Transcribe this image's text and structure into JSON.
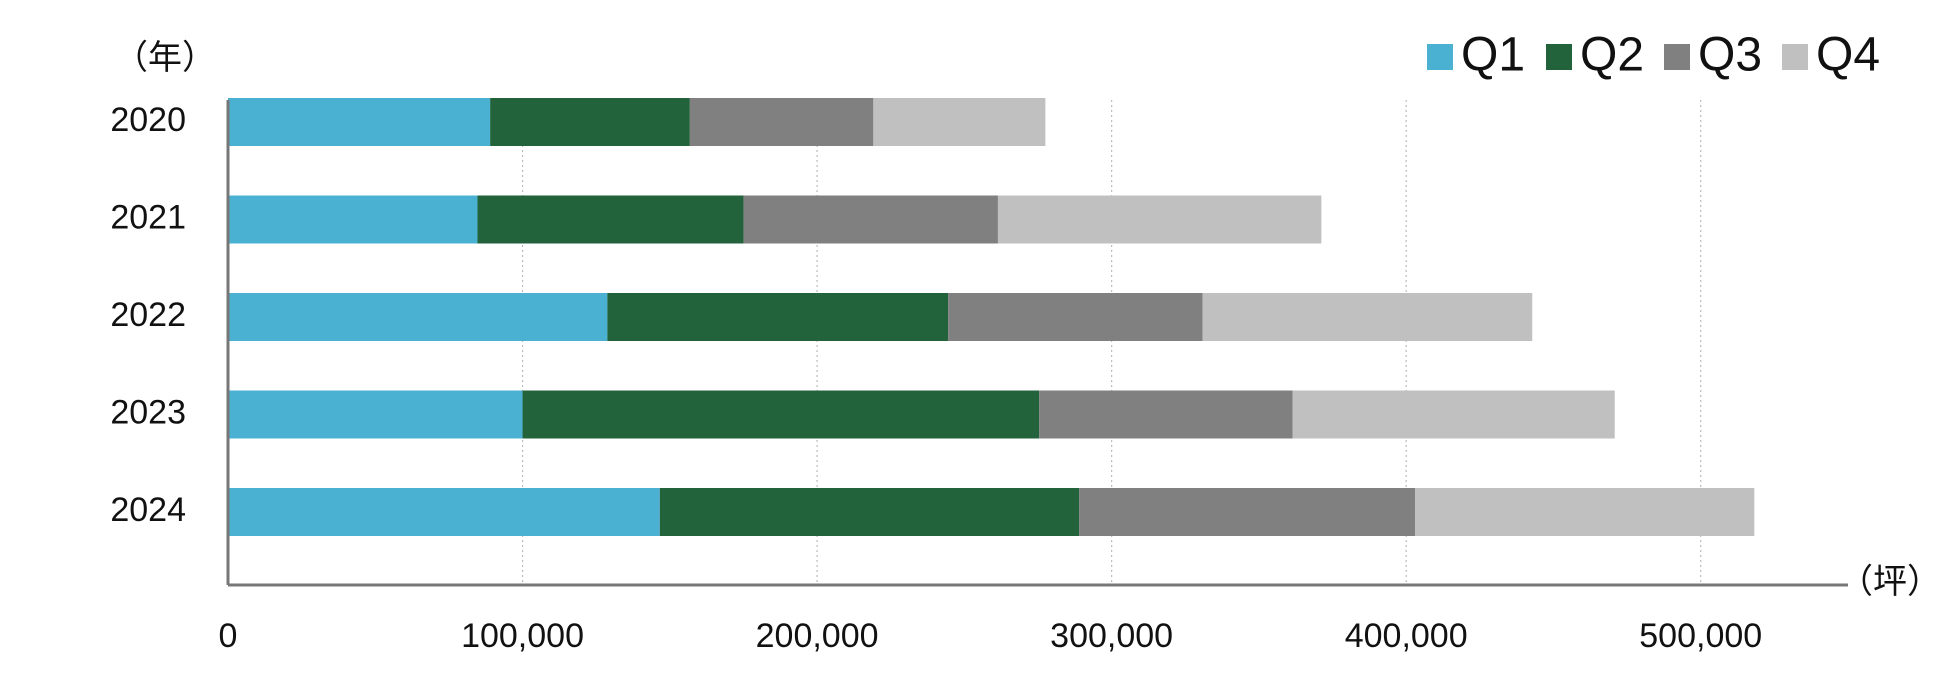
{
  "chart_data": {
    "type": "bar",
    "orientation": "horizontal",
    "stacked": true,
    "y_unit_label": "（年）",
    "x_unit_label": "（坪）",
    "categories": [
      "2020",
      "2021",
      "2022",
      "2023",
      "2024"
    ],
    "series": [
      {
        "name": "Q1",
        "color": "#4bb1d3",
        "values": [
          89000,
          84700,
          128800,
          100000,
          146600
        ]
      },
      {
        "name": "Q2",
        "color": "#22633c",
        "values": [
          67800,
          90300,
          115700,
          175400,
          142400
        ]
      },
      {
        "name": "Q3",
        "color": "#808080",
        "values": [
          62300,
          86400,
          86400,
          86000,
          114000
        ]
      },
      {
        "name": "Q4",
        "color": "#c0c0c0",
        "values": [
          58400,
          109800,
          111900,
          109400,
          115200
        ]
      }
    ],
    "xlim": [
      0,
      550000
    ],
    "xticks": [
      0,
      {
        "value": 100000,
        "label": "100,000"
      },
      {
        "value": 200000,
        "label": "200,000"
      },
      {
        "value": 300000,
        "label": "300,000"
      },
      {
        "value": 400000,
        "label": "400,000"
      },
      {
        "value": 500000,
        "label": "500,000"
      }
    ],
    "grid": true,
    "legend": "top-right"
  }
}
